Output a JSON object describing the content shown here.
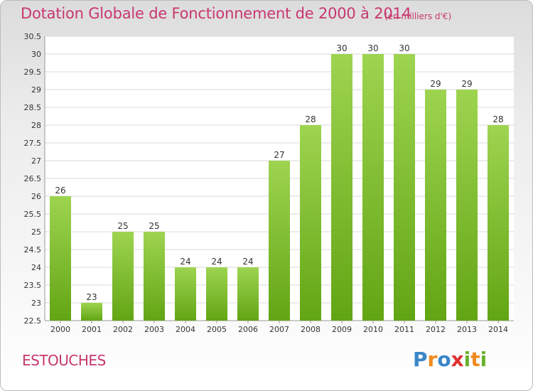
{
  "page": {
    "title": "Dotation Globale de Fonctionnement de 2000 à 2014",
    "subtitle": "(en milliers d'€)",
    "place": "ESTOUCHES",
    "logo_text": "Proxiti"
  },
  "chart_data": {
    "type": "bar",
    "title": "Dotation Globale de Fonctionnement de 2000 à 2014",
    "subtitle": "(en milliers d'€)",
    "xlabel": "",
    "ylabel": "",
    "categories": [
      "2000",
      "2001",
      "2002",
      "2003",
      "2004",
      "2005",
      "2006",
      "2007",
      "2008",
      "2009",
      "2010",
      "2011",
      "2012",
      "2013",
      "2014"
    ],
    "values": [
      26,
      23,
      25,
      25,
      24,
      24,
      24,
      27,
      28,
      30,
      30,
      30,
      29,
      29,
      28
    ],
    "data_labels": [
      "26",
      "23",
      "25",
      "25",
      "24",
      "24",
      "24",
      "27",
      "28",
      "30",
      "30",
      "30",
      "29",
      "29",
      "28"
    ],
    "ylim": [
      22.5,
      30.5
    ],
    "yticks": [
      "22.5",
      "23",
      "23.5",
      "24",
      "24.5",
      "25",
      "25.5",
      "26",
      "26.5",
      "27",
      "27.5",
      "28",
      "28.5",
      "29",
      "29.5",
      "30",
      "30.5"
    ],
    "grid": true,
    "legend": "none",
    "colors": {
      "bar_top": "#9ed450",
      "bar_bottom": "#62a514",
      "grid": "#d8d8d8",
      "axis_text": "#333333",
      "title": "#c8376e"
    }
  }
}
